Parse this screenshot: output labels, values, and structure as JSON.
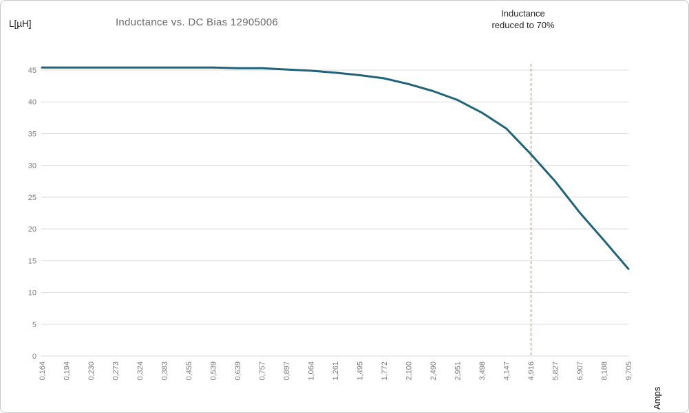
{
  "chart_data": {
    "type": "line",
    "title": "Inductance vs. DC Bias 12905006",
    "ylabel": "L[µH]",
    "xlabel": "Amps",
    "annotation": {
      "line1": "Inductance",
      "line2": "reduced to 70%"
    },
    "categories": [
      "0,164",
      "0,194",
      "0,230",
      "0,273",
      "0,324",
      "0,383",
      "0,455",
      "0,539",
      "0,639",
      "0,757",
      "0,897",
      "1,064",
      "1,261",
      "1,495",
      "1,772",
      "2,100",
      "2,490",
      "2,951",
      "3,498",
      "4,147",
      "4,916",
      "5,827",
      "6,907",
      "8,188",
      "9,705"
    ],
    "series": [
      {
        "name": "Inductance",
        "values": [
          45.4,
          45.4,
          45.4,
          45.4,
          45.4,
          45.4,
          45.4,
          45.4,
          45.3,
          45.3,
          45.1,
          44.9,
          44.6,
          44.2,
          43.7,
          42.8,
          41.7,
          40.3,
          38.3,
          35.8,
          31.8,
          27.5,
          22.6,
          18.2,
          13.7
        ]
      }
    ],
    "y_axis": {
      "min": 0,
      "max": 45,
      "step": 5
    },
    "reference_line": {
      "category": "4,916",
      "category_index": 20,
      "style": "dashed"
    },
    "grid": "horizontal",
    "legend": "none",
    "colors": {
      "line": "#1e6378",
      "grid": "#d9d9d9",
      "tick_text": "#7f7f7f",
      "title_text": "#6a6a6a",
      "annotation_text": "#262626",
      "reference_line": "#c38b57",
      "frame_border": "#c9c9c9",
      "background": "#ffffff"
    }
  }
}
